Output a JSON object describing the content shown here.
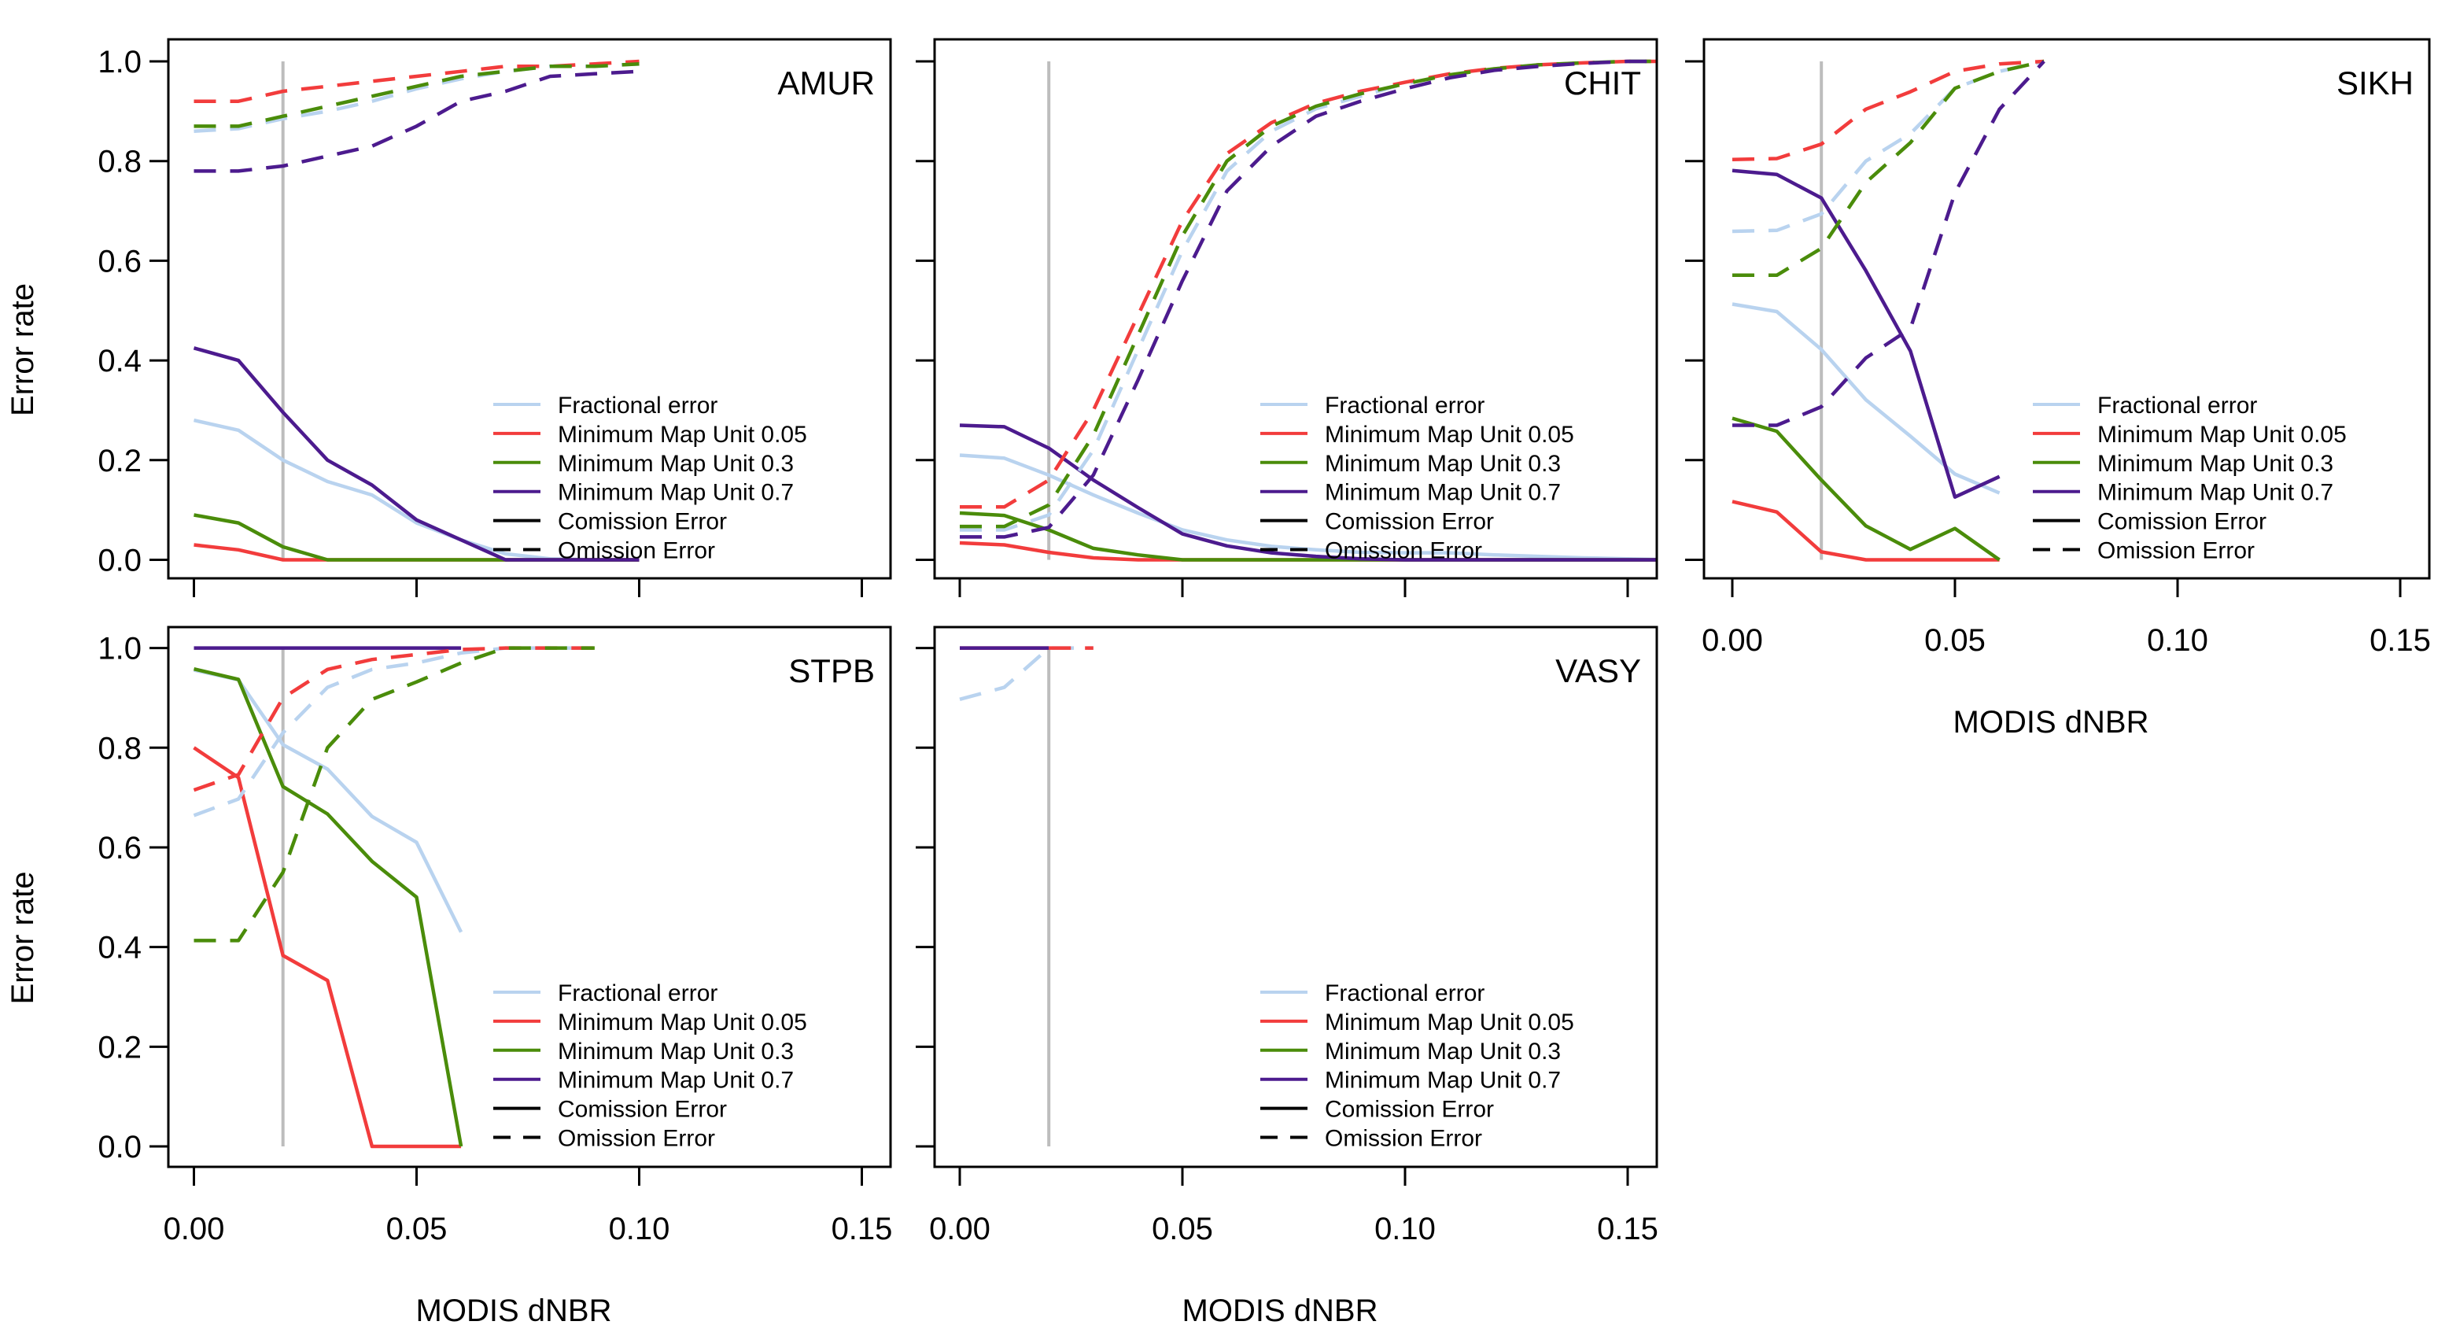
{
  "colors": {
    "Fractional error": "#b9d3ef",
    "Minimum Map Unit 0.05": "#f23c3c",
    "Minimum Map Unit 0.3": "#4a8c0a",
    "Minimum Map Unit 0.7": "#4c1b8e",
    "reference_line": "#bdbdbd"
  },
  "chart_data": {
    "type": "line",
    "layout": "2x3 panels (5 used)",
    "xlabel": "MODIS dNBR",
    "ylabel": "Error rate",
    "xlim": [
      0,
      0.155
    ],
    "ylim": [
      0,
      1
    ],
    "xticks": [
      "0.00",
      "0.05",
      "0.10",
      "0.15"
    ],
    "yticks": [
      "0.0",
      "0.2",
      "0.4",
      "0.6",
      "0.8",
      "1.0"
    ],
    "reference_line_x": 0.02,
    "grid": false,
    "legend": {
      "placement": "bottom-right",
      "entries": [
        {
          "label": "Fractional error",
          "style": "solid"
        },
        {
          "label": "Minimum Map Unit 0.05",
          "style": "solid"
        },
        {
          "label": "Minimum Map Unit 0.3",
          "style": "solid"
        },
        {
          "label": "Minimum Map Unit 0.7",
          "style": "solid"
        },
        {
          "label": "Comission Error",
          "style": "solid",
          "color": "#000000"
        },
        {
          "label": "Omission Error",
          "style": "dashed",
          "color": "#000000"
        }
      ]
    },
    "panels": [
      {
        "title": "AMUR",
        "x": [
          0,
          0.01,
          0.02,
          0.03,
          0.04,
          0.05,
          0.06,
          0.07,
          0.08,
          0.09,
          0.1
        ],
        "series": [
          {
            "name": "Fractional error",
            "error": "Comission Error",
            "values": [
              0.28,
              0.26,
              0.2,
              0.157,
              0.13,
              0.074,
              0.04,
              0.012,
              0.002,
              0,
              0
            ]
          },
          {
            "name": "Minimum Map Unit 0.05",
            "error": "Comission Error",
            "values": [
              0.03,
              0.02,
              0,
              0,
              0,
              0,
              0,
              0,
              0,
              0,
              0
            ]
          },
          {
            "name": "Minimum Map Unit 0.3",
            "error": "Comission Error",
            "values": [
              0.09,
              0.074,
              0.026,
              0,
              0,
              0,
              0,
              0,
              0,
              0,
              0
            ]
          },
          {
            "name": "Minimum Map Unit 0.7",
            "error": "Comission Error",
            "values": [
              0.425,
              0.4,
              0.296,
              0.2,
              0.15,
              0.08,
              0.04,
              0,
              0,
              0,
              0
            ]
          },
          {
            "name": "Fractional error",
            "error": "Omission Error",
            "values": [
              0.86,
              0.865,
              0.885,
              0.9,
              0.92,
              0.945,
              0.965,
              0.98,
              0.99,
              0.99,
              0.995
            ]
          },
          {
            "name": "Minimum Map Unit 0.05",
            "error": "Omission Error",
            "values": [
              0.92,
              0.92,
              0.94,
              0.95,
              0.96,
              0.97,
              0.98,
              0.99,
              0.99,
              0.995,
              1.0
            ]
          },
          {
            "name": "Minimum Map Unit 0.3",
            "error": "Omission Error",
            "values": [
              0.87,
              0.87,
              0.89,
              0.91,
              0.93,
              0.95,
              0.97,
              0.98,
              0.99,
              0.99,
              0.995
            ]
          },
          {
            "name": "Minimum Map Unit 0.7",
            "error": "Omission Error",
            "values": [
              0.78,
              0.78,
              0.79,
              0.81,
              0.83,
              0.87,
              0.92,
              0.94,
              0.97,
              0.975,
              0.98
            ]
          }
        ]
      },
      {
        "title": "CHIT",
        "x": [
          0,
          0.01,
          0.02,
          0.03,
          0.04,
          0.05,
          0.06,
          0.07,
          0.08,
          0.09,
          0.1,
          0.11,
          0.12,
          0.13,
          0.14,
          0.15,
          0.16
        ],
        "series": [
          {
            "name": "Fractional error",
            "error": "Comission Error",
            "values": [
              0.21,
              0.204,
              0.17,
              0.13,
              0.094,
              0.06,
              0.04,
              0.027,
              0.02,
              0.015,
              0.014,
              0.014,
              0.01,
              0.007,
              0.004,
              0.002,
              0
            ]
          },
          {
            "name": "Minimum Map Unit 0.05",
            "error": "Comission Error",
            "values": [
              0.034,
              0.03,
              0.015,
              0.004,
              0,
              0,
              0,
              0,
              0,
              0,
              0,
              0,
              0,
              0,
              0,
              0,
              0
            ]
          },
          {
            "name": "Minimum Map Unit 0.3",
            "error": "Comission Error",
            "values": [
              0.094,
              0.089,
              0.06,
              0.023,
              0.01,
              0,
              0,
              0,
              0,
              0,
              0,
              0,
              0,
              0,
              0,
              0,
              0
            ]
          },
          {
            "name": "Minimum Map Unit 0.7",
            "error": "Comission Error",
            "values": [
              0.27,
              0.267,
              0.224,
              0.16,
              0.105,
              0.052,
              0.028,
              0.014,
              0.007,
              0.002,
              0,
              0,
              0,
              0,
              0,
              0,
              0
            ]
          },
          {
            "name": "Fractional error",
            "error": "Omission Error",
            "values": [
              0.06,
              0.06,
              0.09,
              0.22,
              0.42,
              0.62,
              0.78,
              0.86,
              0.905,
              0.93,
              0.955,
              0.972,
              0.985,
              0.993,
              0.997,
              1.0,
              1.0
            ]
          },
          {
            "name": "Minimum Map Unit 0.05",
            "error": "Omission Error",
            "values": [
              0.106,
              0.106,
              0.16,
              0.3,
              0.49,
              0.68,
              0.815,
              0.877,
              0.916,
              0.94,
              0.958,
              0.975,
              0.986,
              0.993,
              0.997,
              1.0,
              1.0
            ]
          },
          {
            "name": "Minimum Map Unit 0.3",
            "error": "Omission Error",
            "values": [
              0.067,
              0.067,
              0.11,
              0.25,
              0.45,
              0.65,
              0.8,
              0.87,
              0.91,
              0.935,
              0.955,
              0.973,
              0.985,
              0.993,
              0.997,
              1.0,
              1.0
            ]
          },
          {
            "name": "Minimum Map Unit 0.7",
            "error": "Omission Error",
            "values": [
              0.046,
              0.046,
              0.065,
              0.17,
              0.36,
              0.56,
              0.74,
              0.83,
              0.89,
              0.92,
              0.945,
              0.967,
              0.982,
              0.99,
              0.996,
              1.0,
              1.0
            ]
          }
        ]
      },
      {
        "title": "SIKH",
        "x": [
          0,
          0.01,
          0.02,
          0.03,
          0.04,
          0.05,
          0.06,
          0.07
        ],
        "series": [
          {
            "name": "Fractional error",
            "error": "Comission Error",
            "values": [
              0.513,
              0.498,
              0.422,
              0.321,
              0.248,
              0.172,
              0.134,
              null
            ]
          },
          {
            "name": "Minimum Map Unit 0.05",
            "error": "Comission Error",
            "values": [
              0.117,
              0.096,
              0.016,
              0,
              0,
              0,
              0,
              null
            ]
          },
          {
            "name": "Minimum Map Unit 0.3",
            "error": "Comission Error",
            "values": [
              0.284,
              0.258,
              0.16,
              0.068,
              0.021,
              0.063,
              0,
              null
            ]
          },
          {
            "name": "Minimum Map Unit 0.7",
            "error": "Comission Error",
            "values": [
              0.781,
              0.773,
              0.726,
              0.58,
              0.419,
              0.126,
              0.167,
              null
            ]
          },
          {
            "name": "Fractional error",
            "error": "Omission Error",
            "values": [
              0.659,
              0.661,
              0.694,
              0.8,
              0.855,
              0.946,
              0.98,
              1.0
            ]
          },
          {
            "name": "Minimum Map Unit 0.05",
            "error": "Omission Error",
            "values": [
              0.803,
              0.805,
              0.834,
              0.904,
              0.939,
              0.98,
              0.995,
              1.0
            ]
          },
          {
            "name": "Minimum Map Unit 0.3",
            "error": "Omission Error",
            "values": [
              0.571,
              0.571,
              0.625,
              0.757,
              0.837,
              0.946,
              0.98,
              1.0
            ]
          },
          {
            "name": "Minimum Map Unit 0.7",
            "error": "Omission Error",
            "values": [
              0.27,
              0.27,
              0.307,
              0.405,
              0.464,
              0.736,
              0.904,
              1.0
            ]
          }
        ]
      },
      {
        "title": "STPB",
        "x": [
          0,
          0.01,
          0.02,
          0.03,
          0.04,
          0.05,
          0.06,
          0.07,
          0.08,
          0.09
        ],
        "series": [
          {
            "name": "Fractional error",
            "error": "Comission Error",
            "values": [
              0.956,
              0.936,
              0.806,
              0.757,
              0.662,
              0.61,
              0.43,
              null,
              null,
              null
            ]
          },
          {
            "name": "Minimum Map Unit 0.05",
            "error": "Comission Error",
            "values": [
              0.8,
              0.74,
              0.383,
              0.333,
              0,
              0,
              0,
              null,
              null,
              null
            ]
          },
          {
            "name": "Minimum Map Unit 0.3",
            "error": "Comission Error",
            "values": [
              0.958,
              0.937,
              0.722,
              0.667,
              0.572,
              0.5,
              0,
              null,
              null,
              null
            ]
          },
          {
            "name": "Minimum Map Unit 0.7",
            "error": "Comission Error",
            "values": [
              1.0,
              1.0,
              1.0,
              1.0,
              1.0,
              1.0,
              1.0,
              null,
              null,
              null
            ]
          },
          {
            "name": "Fractional error",
            "error": "Omission Error",
            "values": [
              0.664,
              0.697,
              0.83,
              0.921,
              0.957,
              0.97,
              0.99,
              1.0,
              1.0,
              1.0
            ]
          },
          {
            "name": "Minimum Map Unit 0.05",
            "error": "Omission Error",
            "values": [
              0.715,
              0.746,
              0.9,
              0.957,
              0.977,
              0.987,
              0.997,
              1.0,
              1.0,
              1.0
            ]
          },
          {
            "name": "Minimum Map Unit 0.3",
            "error": "Omission Error",
            "values": [
              0.413,
              0.413,
              0.55,
              0.8,
              0.897,
              0.932,
              0.97,
              1.0,
              1.0,
              1.0
            ]
          }
        ]
      },
      {
        "title": "VASY",
        "x": [
          0,
          0.01,
          0.02,
          0.03
        ],
        "series": [
          {
            "name": "Minimum Map Unit 0.05",
            "error": "Comission Error",
            "values": [
              1.0,
              1.0,
              1.0,
              null
            ]
          },
          {
            "name": "Minimum Map Unit 0.7",
            "error": "Comission Error",
            "values": [
              1.0,
              1.0,
              1.0,
              null
            ]
          },
          {
            "name": "Fractional error",
            "error": "Omission Error",
            "values": [
              0.897,
              0.921,
              1.0,
              1.0
            ]
          },
          {
            "name": "Minimum Map Unit 0.05",
            "error": "Omission Error",
            "values": [
              null,
              null,
              1.0,
              1.0
            ]
          }
        ]
      }
    ]
  }
}
